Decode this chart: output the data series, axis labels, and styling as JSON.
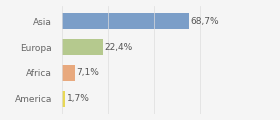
{
  "categories": [
    "Asia",
    "Europa",
    "Africa",
    "America"
  ],
  "values": [
    68.7,
    22.4,
    7.1,
    1.7
  ],
  "labels": [
    "68,7%",
    "22,4%",
    "7,1%",
    "1,7%"
  ],
  "bar_colors": [
    "#7b9ec8",
    "#b5c98e",
    "#e8a97e",
    "#e8d855"
  ],
  "background_color": "#f5f5f5",
  "xlim": [
    0,
    100
  ],
  "bar_height": 0.62,
  "label_fontsize": 6.5,
  "tick_fontsize": 6.5
}
